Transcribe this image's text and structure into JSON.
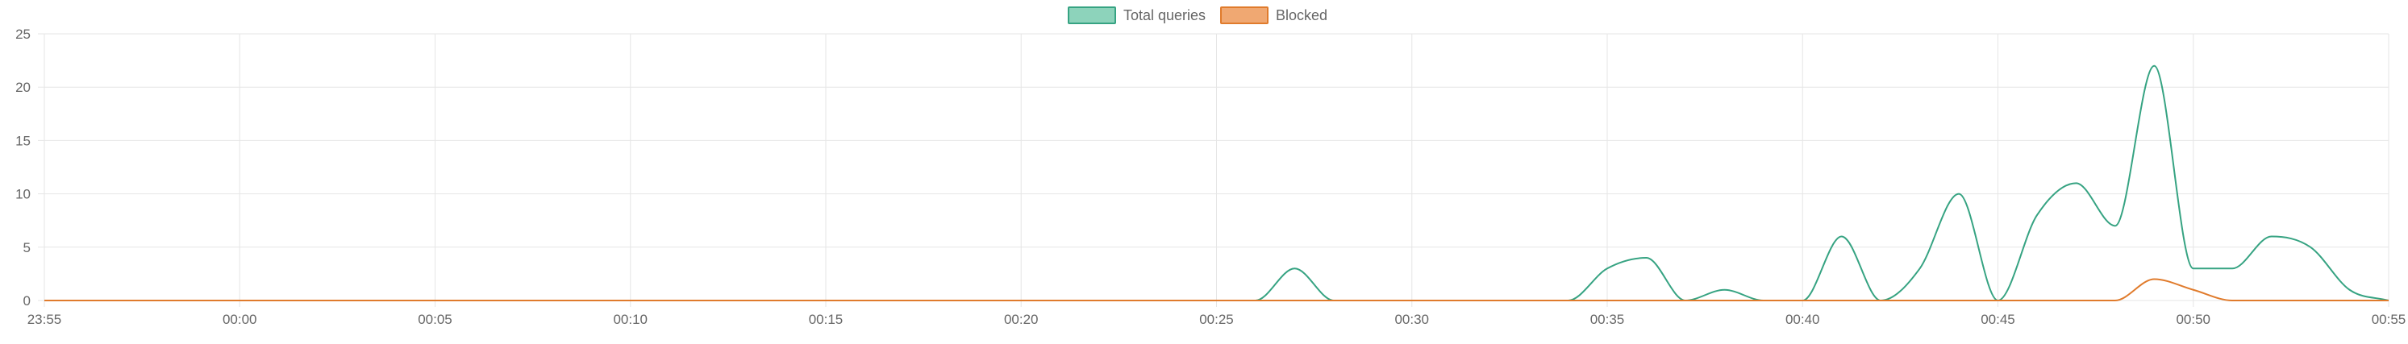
{
  "chart_data": {
    "type": "line",
    "legend": {
      "position": "top-center"
    },
    "grid": true,
    "x": [
      "23:55",
      "23:56",
      "23:57",
      "23:58",
      "23:59",
      "00:00",
      "00:01",
      "00:02",
      "00:03",
      "00:04",
      "00:05",
      "00:06",
      "00:07",
      "00:08",
      "00:09",
      "00:10",
      "00:11",
      "00:12",
      "00:13",
      "00:14",
      "00:15",
      "00:16",
      "00:17",
      "00:18",
      "00:19",
      "00:20",
      "00:21",
      "00:22",
      "00:23",
      "00:24",
      "00:25",
      "00:26",
      "00:27",
      "00:28",
      "00:29",
      "00:30",
      "00:31",
      "00:32",
      "00:33",
      "00:34",
      "00:35",
      "00:36",
      "00:37",
      "00:38",
      "00:39",
      "00:40",
      "00:41",
      "00:42",
      "00:43",
      "00:44",
      "00:45",
      "00:46",
      "00:47",
      "00:48",
      "00:49",
      "00:50",
      "00:51",
      "00:52",
      "00:53",
      "00:54",
      "00:55"
    ],
    "xticks": [
      "23:55",
      "00:00",
      "00:05",
      "00:10",
      "00:15",
      "00:20",
      "00:25",
      "00:30",
      "00:35",
      "00:40",
      "00:45",
      "00:50",
      "00:55"
    ],
    "yticks": [
      "0",
      "5",
      "10",
      "15",
      "20",
      "25"
    ],
    "ylim": [
      0,
      25
    ],
    "series": [
      {
        "name": "Total queries",
        "color": "#36a382",
        "fill": "#8dd3bb",
        "values": [
          0,
          0,
          0,
          0,
          0,
          0,
          0,
          0,
          0,
          0,
          0,
          0,
          0,
          0,
          0,
          0,
          0,
          0,
          0,
          0,
          0,
          0,
          0,
          0,
          0,
          0,
          0,
          0,
          0,
          0,
          0,
          0,
          3,
          0,
          0,
          0,
          0,
          0,
          0,
          0,
          3,
          4,
          0,
          1,
          0,
          0,
          6,
          0,
          3,
          10,
          0,
          8,
          11,
          7,
          22,
          3,
          3,
          6,
          5,
          1,
          0
        ]
      },
      {
        "name": "Blocked",
        "color": "#e07b2c",
        "fill": "#f0a872",
        "values": [
          0,
          0,
          0,
          0,
          0,
          0,
          0,
          0,
          0,
          0,
          0,
          0,
          0,
          0,
          0,
          0,
          0,
          0,
          0,
          0,
          0,
          0,
          0,
          0,
          0,
          0,
          0,
          0,
          0,
          0,
          0,
          0,
          0,
          0,
          0,
          0,
          0,
          0,
          0,
          0,
          0,
          0,
          0,
          0,
          0,
          0,
          0,
          0,
          0,
          0,
          0,
          0,
          0,
          0,
          2,
          1,
          0,
          0,
          0,
          0,
          0
        ]
      }
    ]
  }
}
